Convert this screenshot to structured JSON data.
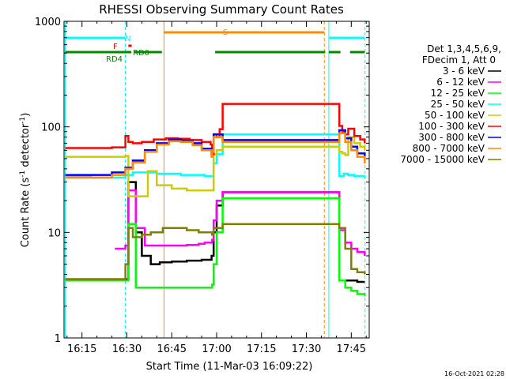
{
  "chart_data": {
    "type": "line",
    "title": "RHESSI Observing Summary Count Rates",
    "xlabel": "Start Time (11-Mar-03 16:09:22)",
    "ylabel_main": "Count Rate (s",
    "ylabel_sup1": "-1",
    "ylabel_mid": " detector",
    "ylabel_sup2": "-1",
    "ylabel_end": ")",
    "yscale": "log",
    "ylim": [
      1,
      1000
    ],
    "xlim_min": [
      969,
      1071
    ],
    "x_ticks_min": [
      975,
      990,
      1005,
      1020,
      1035,
      1050,
      1065
    ],
    "x_tick_labels": [
      "16:15",
      "16:30",
      "16:45",
      "17:00",
      "17:15",
      "17:30",
      "17:45"
    ],
    "y_ticks": [
      1,
      10,
      100,
      1000
    ],
    "y_tick_labels": [
      "1",
      "10",
      "100",
      "1000"
    ],
    "legend_header": [
      "Det 1,3,4,5,6,9,",
      "FDecim 1, Att 0"
    ],
    "timestamp": "16-Oct-2021 02:28",
    "bars": [
      {
        "label": "N",
        "color": "#00ffff",
        "row": 0,
        "segments": [
          [
            969.4,
            989.5
          ],
          [
            1057.6,
            1069.5
          ]
        ]
      },
      {
        "label": "S",
        "color": "#ff8c00",
        "row": -1,
        "segments": [
          [
            1002.4,
            1056
          ]
        ]
      },
      {
        "label": "F",
        "color": "#ff0000",
        "row": 1,
        "segments": [
          [
            990.5,
            991.6
          ]
        ]
      },
      {
        "label": "RD0",
        "color": "#008800",
        "row": 2,
        "segments": [
          [
            969.4,
            991.5
          ],
          [
            992.3,
            1001.7
          ],
          [
            1019.5,
            1056.3
          ],
          [
            1057.5,
            1061.4
          ],
          [
            1064.6,
            1069.5
          ]
        ]
      },
      {
        "label": "RD4",
        "color": "#008800",
        "row": 2,
        "segments": []
      }
    ],
    "vlines": [
      {
        "x": 969.4,
        "color": "#00ffff",
        "style": "solid"
      },
      {
        "x": 989.5,
        "color": "#00ffff",
        "style": "dashed"
      },
      {
        "x": 1002.4,
        "color": "#ff8c00",
        "style": "solid"
      },
      {
        "x": 1056,
        "color": "#ff8c00",
        "style": "dashed"
      },
      {
        "x": 1057.5,
        "color": "#00ffff",
        "style": "solid"
      },
      {
        "x": 1069.6,
        "color": "#00ffff",
        "style": "dashed"
      }
    ],
    "series": [
      {
        "name": "3 - 6 keV",
        "color": "#000000",
        "x": [
          969.4,
          980,
          989.5,
          990.5,
          993,
          995,
          998,
          1001,
          1005,
          1010,
          1015,
          1017,
          1018.3,
          1019,
          1020,
          1022,
          1061,
          1063,
          1065,
          1067,
          1069.5
        ],
        "y": [
          3.6,
          3.6,
          3.6,
          30,
          10,
          6,
          5,
          5.2,
          5.3,
          5.4,
          5.5,
          5.5,
          6,
          10,
          18,
          24,
          3.5,
          3.5,
          3.5,
          3.4,
          3.4
        ]
      },
      {
        "name": "6 - 12 keV",
        "color": "#ff00ff",
        "x": [
          986,
          989,
          989.5,
          990.5,
          993,
          996,
          999,
          1002,
          1006,
          1010,
          1014,
          1016,
          1018.5,
          1019,
          1020,
          1022,
          1061,
          1063,
          1065,
          1067,
          1069.5
        ],
        "y": [
          7,
          7,
          7.5,
          25,
          11,
          7.5,
          7.5,
          7.5,
          7.5,
          7.6,
          7.8,
          8,
          8.5,
          13,
          20,
          24,
          10.5,
          8,
          7,
          6.5,
          6
        ]
      },
      {
        "name": "12 - 25 keV",
        "color": "#00ff00",
        "x": [
          969.4,
          980,
          989.5,
          990.5,
          993,
          1000,
          1008,
          1016,
          1018.5,
          1019,
          1020,
          1022,
          1061,
          1063,
          1065,
          1067,
          1069.5
        ],
        "y": [
          3.5,
          3.5,
          3.5,
          12,
          3,
          3,
          3,
          3,
          3.2,
          5,
          10,
          21,
          3.5,
          3,
          2.8,
          2.6,
          2.5
        ]
      },
      {
        "name": "25 - 50 keV",
        "color": "#00ffff",
        "x": [
          969.4,
          978,
          985,
          989.5,
          992,
          996,
          1000,
          1004,
          1008,
          1012,
          1016,
          1018.5,
          1019,
          1020,
          1022,
          1061,
          1062.5,
          1064,
          1066,
          1068,
          1069.5
        ],
        "y": [
          34,
          33,
          33,
          35,
          37,
          37,
          36,
          36,
          35,
          35,
          34,
          34,
          45,
          55,
          85,
          34,
          36,
          35,
          34,
          34,
          33
        ]
      },
      {
        "name": "50 - 100 keV",
        "color": "#cccc00",
        "x": [
          969.4,
          980,
          989.5,
          990.5,
          993,
          995,
          997,
          1000,
          1005,
          1010,
          1015,
          1018.5,
          1019,
          1020,
          1022,
          1061,
          1062,
          1063,
          1064,
          1066,
          1068,
          1069.5
        ],
        "y": [
          52,
          52,
          53,
          22,
          22,
          22,
          38,
          28,
          26,
          25,
          25,
          25,
          55,
          60,
          65,
          58,
          56,
          54,
          80,
          70,
          65,
          60
        ]
      },
      {
        "name": "100 - 300 keV",
        "color": "#ff0000",
        "x": [
          969.4,
          978,
          985,
          989.5,
          990.5,
          992,
          995,
          999,
          1003,
          1007,
          1011,
          1015,
          1018,
          1018.5,
          1019,
          1020,
          1021,
          1022,
          1061,
          1062,
          1063,
          1064,
          1066,
          1068,
          1069.5
        ],
        "y": [
          63,
          63,
          64,
          82,
          72,
          70,
          72,
          76,
          78,
          77,
          75,
          72,
          68,
          55,
          85,
          80,
          95,
          165,
          102,
          90,
          85,
          96,
          82,
          76,
          70
        ]
      },
      {
        "name": "300 - 800 keV",
        "color": "#0000ff",
        "x": [
          969.4,
          978,
          985,
          989.5,
          992,
          996,
          1000,
          1004,
          1008,
          1012,
          1015,
          1018.3,
          1018.5,
          1019,
          1022,
          1061,
          1063,
          1065,
          1067,
          1069.5
        ],
        "y": [
          35,
          35,
          37,
          41,
          48,
          60,
          70,
          76,
          74,
          70,
          62,
          55,
          60,
          85,
          75,
          93,
          78,
          65,
          56,
          48
        ]
      },
      {
        "name": "800 - 7000 keV",
        "color": "#ff8c00",
        "x": [
          969.4,
          978,
          985,
          989.5,
          992,
          996,
          1000,
          1004,
          1008,
          1012,
          1015,
          1018.3,
          1018.5,
          1019,
          1022,
          1061,
          1063,
          1065,
          1067,
          1069.5
        ],
        "y": [
          33,
          33,
          35,
          40,
          46,
          58,
          68,
          73,
          72,
          67,
          60,
          52,
          58,
          80,
          72,
          87,
          72,
          60,
          52,
          45
        ]
      },
      {
        "name": "7000 - 15000 keV",
        "color": "#808000",
        "x": [
          969.4,
          980,
          989.5,
          990.5,
          992,
          995,
          998,
          1002,
          1006,
          1010,
          1014,
          1018.5,
          1019,
          1022,
          1061,
          1063,
          1065,
          1067,
          1069.5
        ],
        "y": [
          3.6,
          3.6,
          5,
          11,
          9,
          9.5,
          10,
          11,
          11,
          10.5,
          10,
          9.5,
          11,
          12,
          11,
          7,
          4.5,
          4.2,
          4
        ]
      }
    ]
  }
}
